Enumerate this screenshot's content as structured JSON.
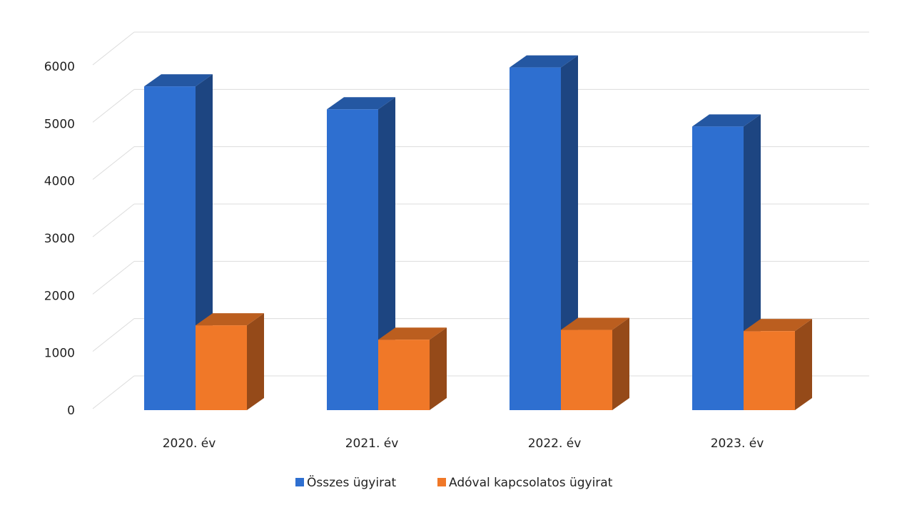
{
  "chart_data": {
    "type": "bar",
    "title": "",
    "xlabel": "",
    "ylabel": "",
    "categories": [
      "2020. év",
      "2021. év",
      "2022. év",
      "2023. év"
    ],
    "series": [
      {
        "name": "Összes ügyirat",
        "values": [
          5650,
          5250,
          5980,
          4950
        ],
        "color": "#2E6FD0"
      },
      {
        "name": "Adóval kapcsolatos ügyirat",
        "values": [
          1480,
          1230,
          1400,
          1380
        ],
        "color": "#F07828"
      }
    ],
    "yticks": [
      "0",
      "1000",
      "2000",
      "3000",
      "4000",
      "5000",
      "6000"
    ],
    "ylim": [
      0,
      6000
    ],
    "grid": true,
    "legend_position": "bottom",
    "style": "3d-clustered-column"
  }
}
